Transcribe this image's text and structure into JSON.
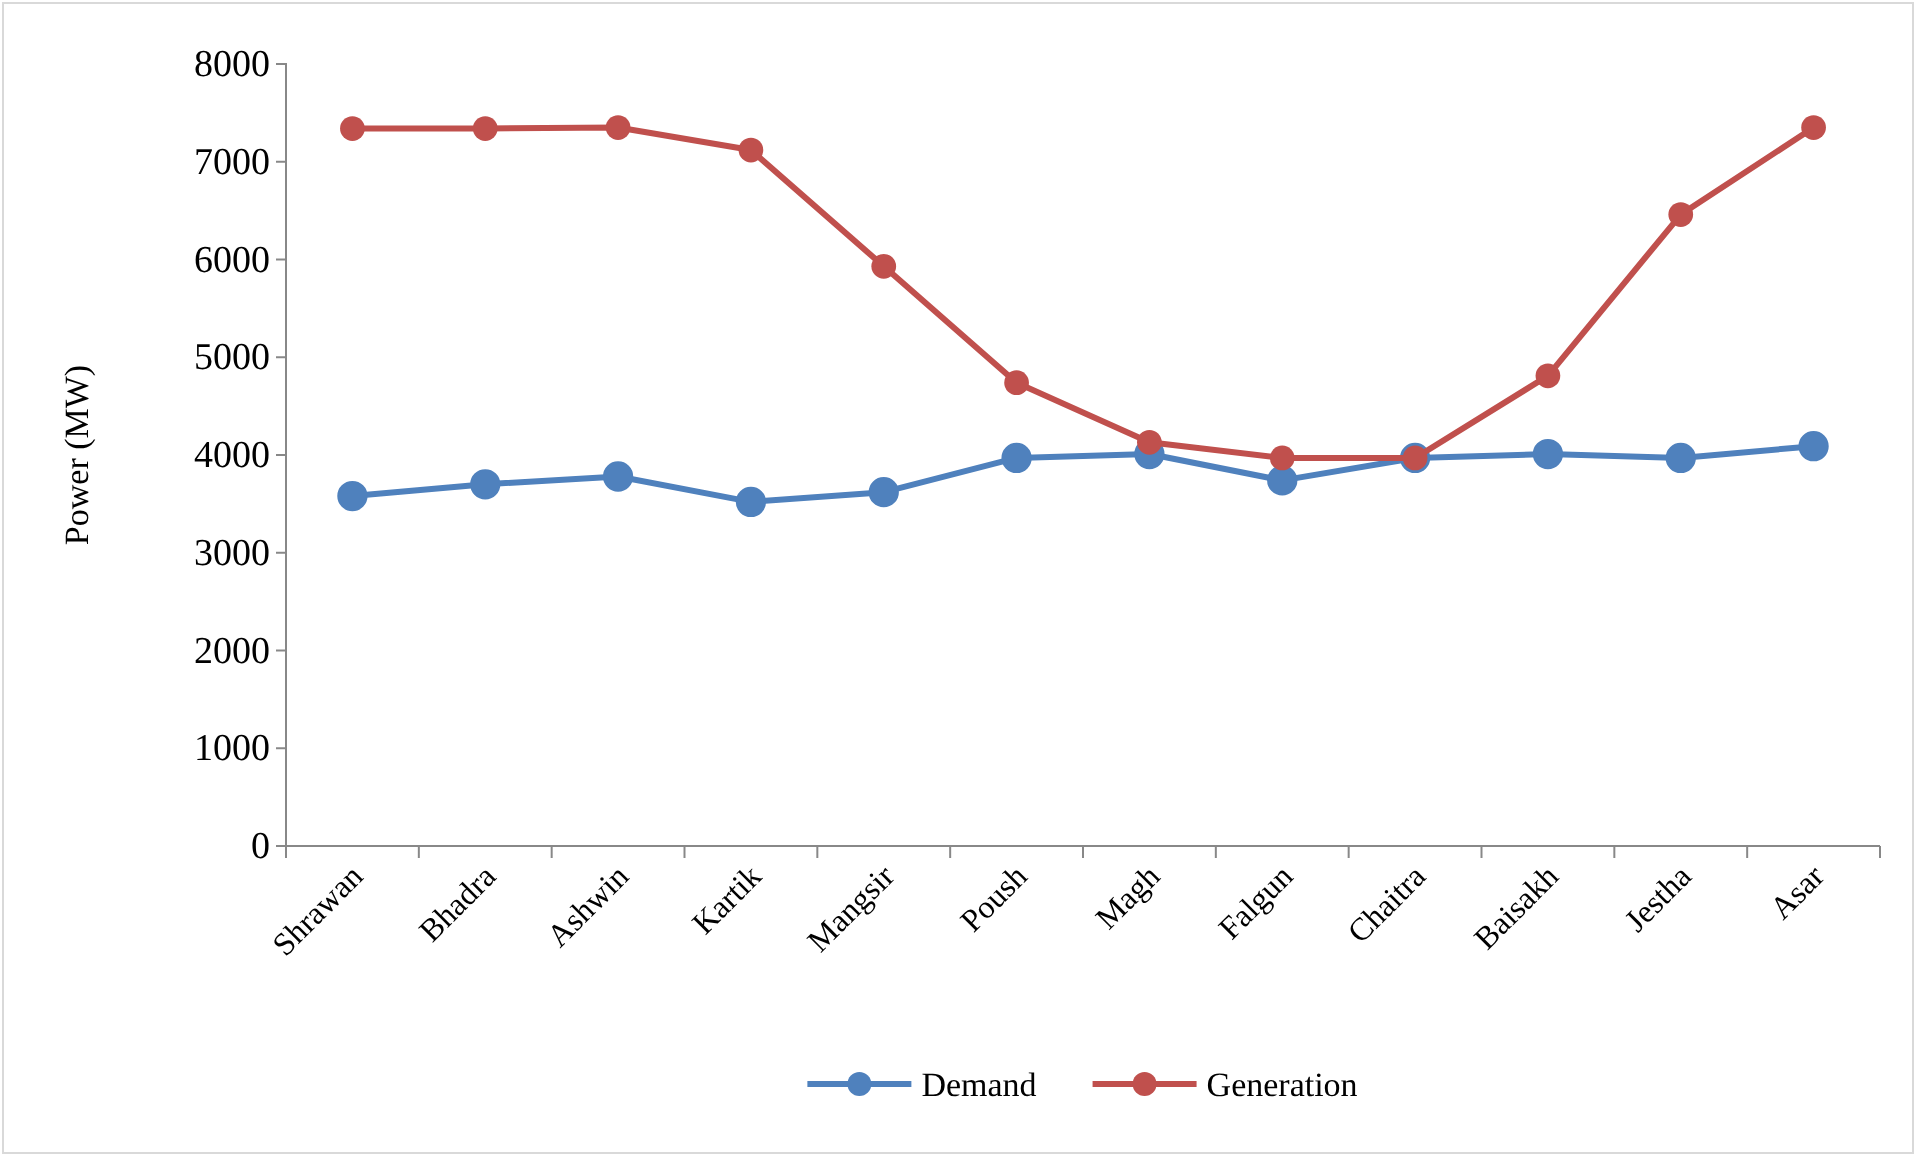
{
  "chart_data": {
    "type": "line",
    "ylabel": "Power (MW)",
    "categories": [
      "Shrawan",
      "Bhadra",
      "Ashwin",
      "Kartik",
      "Mangsir",
      "Poush",
      "Magh",
      "Falgun",
      "Chaitra",
      "Baisakh",
      "Jestha",
      "Asar"
    ],
    "series": [
      {
        "name": "Demand",
        "color": "#4f81bd",
        "values": [
          3580,
          3700,
          3780,
          3520,
          3620,
          3970,
          4010,
          3740,
          3970,
          4010,
          3970,
          4090
        ]
      },
      {
        "name": "Generation",
        "color": "#c0504d",
        "values": [
          7340,
          7340,
          7350,
          7120,
          5930,
          4740,
          4130,
          3970,
          3970,
          4810,
          6460,
          7350
        ]
      }
    ],
    "ylim": [
      0,
      8000
    ],
    "yticks": [
      0,
      1000,
      2000,
      3000,
      4000,
      5000,
      6000,
      7000,
      8000
    ],
    "grid": false,
    "legend": "bottom",
    "marker": "circle",
    "line_style": "solid"
  }
}
